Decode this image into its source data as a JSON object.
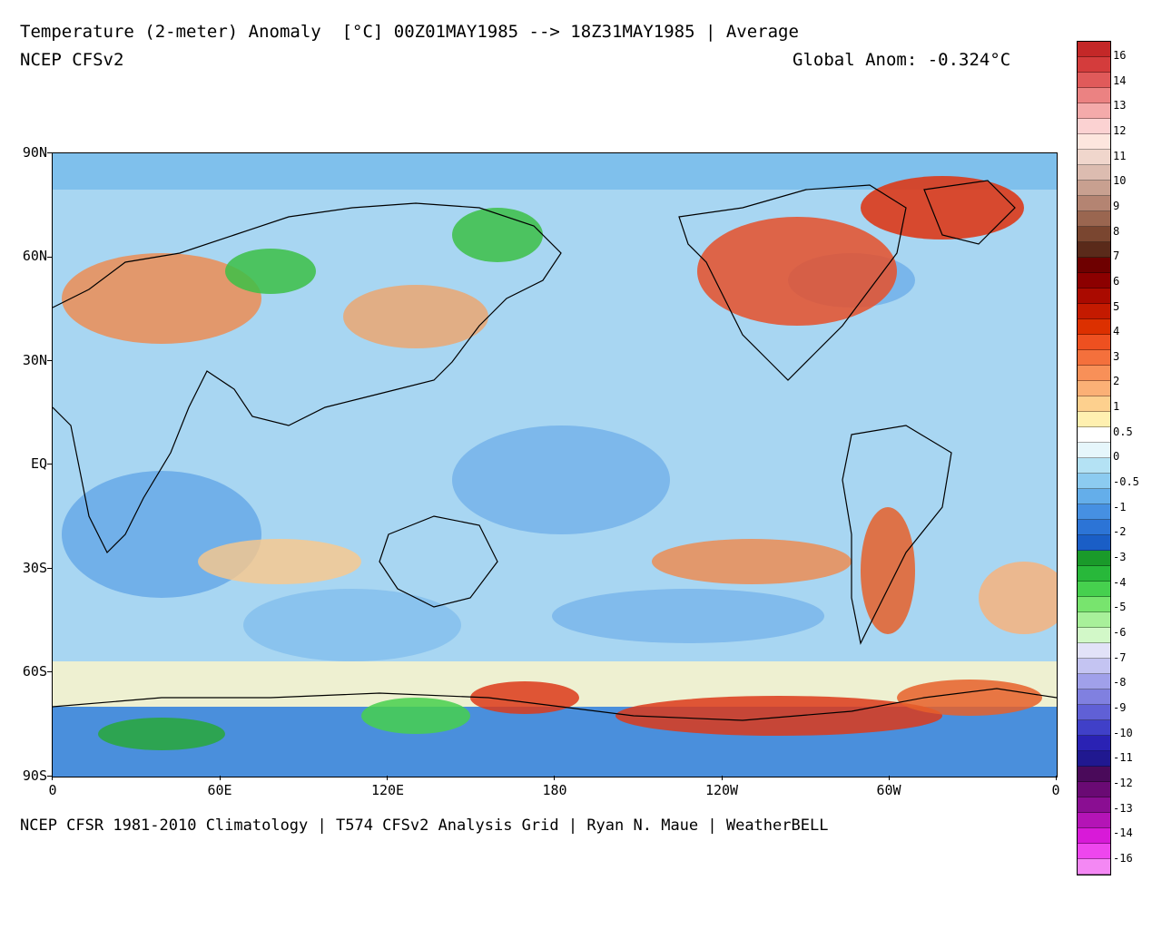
{
  "header": {
    "title": "Temperature (2-meter) Anomaly  [°C] 00Z01MAY1985 --> 18Z31MAY1985 | Average",
    "model": "NCEP CFSv2",
    "global_anomaly": "Global Anom: -0.324°C"
  },
  "footer": {
    "credit": "NCEP CFSR 1981-2010 Climatology | T574 CFSv2 Analysis Grid | Ryan N. Maue | WeatherBELL"
  },
  "map": {
    "lat_labels": [
      "90N",
      "60N",
      "30N",
      "EQ",
      "30S",
      "60S",
      "90S"
    ],
    "lon_labels": [
      "0",
      "60E",
      "120E",
      "180",
      "120W",
      "60W",
      "0"
    ]
  },
  "colorbar": {
    "labels": [
      "16",
      "14",
      "13",
      "12",
      "11",
      "10",
      "9",
      "8",
      "7",
      "6",
      "5",
      "4",
      "3",
      "2",
      "1",
      "0.5",
      "0",
      "-0.5",
      "-1",
      "-2",
      "-3",
      "-4",
      "-5",
      "-6",
      "-7",
      "-8",
      "-9",
      "-10",
      "-11",
      "-12",
      "-13",
      "-14",
      "-16"
    ],
    "colors": [
      "#c42828",
      "#d43c3c",
      "#e05a5a",
      "#eb8282",
      "#f4aaaa",
      "#fbd2d2",
      "#fde6de",
      "#f0d6cc",
      "#dcbcb0",
      "#c8a090",
      "#b48472",
      "#9a6650",
      "#7a4630",
      "#5a2a1a",
      "#6e0000",
      "#8c0000",
      "#aa0a00",
      "#c41a00",
      "#dc3000",
      "#ee5020",
      "#f4703c",
      "#f89058",
      "#fbb076",
      "#fdd08e",
      "#fff0b0",
      "#ffffff",
      "#e6f6fb",
      "#b4e2f4",
      "#8ccbf0",
      "#64aeea",
      "#4690e2",
      "#2c74d6",
      "#1a5ec6",
      "#1a9a2a",
      "#28b83a",
      "#46d04e",
      "#78e46e",
      "#a8f09a",
      "#d2f8c8",
      "#e2e2f8",
      "#c4c4f2",
      "#a0a0ea",
      "#8080e0",
      "#6060d6",
      "#4040c8",
      "#2a22b4",
      "#201890",
      "#4a0a5a",
      "#6a0a74",
      "#8a0e92",
      "#b414b6",
      "#d81ad8",
      "#ee46ee",
      "#f488f4"
    ],
    "color_notes": "cells top to bottom, first 33 colors used by bar (one per interval); warm reds top, greens -3 to -7, purples bottom"
  }
}
